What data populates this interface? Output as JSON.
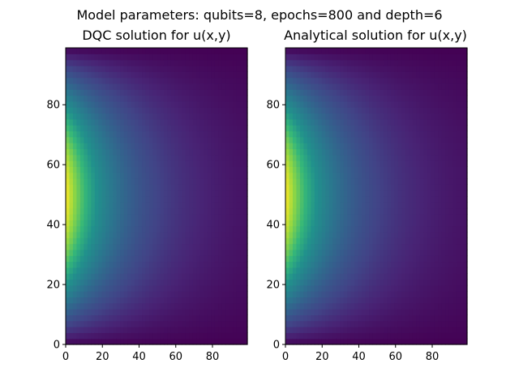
{
  "figure": {
    "suptitle": "Model parameters: qubits=8, epochs=800 and depth=6"
  },
  "chart_data": [
    {
      "type": "heatmap",
      "title": "DQC solution for u(x,y)",
      "xlabel": "",
      "ylabel": "",
      "xlim": [
        0,
        99
      ],
      "ylim": [
        0,
        99
      ],
      "x_ticks": [
        0,
        20,
        40,
        60,
        80
      ],
      "y_ticks": [
        0,
        20,
        40,
        60,
        80
      ],
      "colormap": "viridis",
      "origin": "lower",
      "grid": false,
      "description_of_values": "high (yellow) near x=0, y≈50; decays with increasing x and toward y=0 and y=99",
      "approx_max": 1.0,
      "approx_min": 0.0
    },
    {
      "type": "heatmap",
      "title": "Analytical solution for u(x,y)",
      "xlabel": "",
      "ylabel": "",
      "xlim": [
        0,
        99
      ],
      "ylim": [
        0,
        99
      ],
      "x_ticks": [
        0,
        20,
        40,
        60,
        80
      ],
      "y_ticks": [
        0,
        20,
        40,
        60,
        80
      ],
      "colormap": "viridis",
      "origin": "lower",
      "grid": false,
      "description_of_values": "high (yellow) near x=0, y≈50; decays with increasing x and toward y=0 and y=99",
      "approx_max": 1.0,
      "approx_min": 0.0
    }
  ]
}
